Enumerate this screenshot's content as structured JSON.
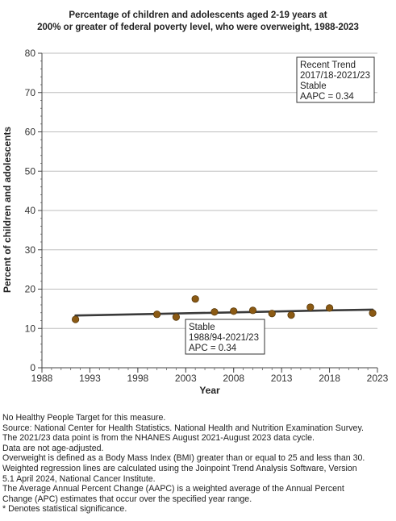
{
  "chart_data": {
    "type": "scatter",
    "title_lines": [
      "Percentage of children and adolescents aged 2-19 years at",
      "200% or greater of federal poverty level, who were overweight, 1988-2023"
    ],
    "xlabel": "Year",
    "ylabel": "Percent of children and adolescents",
    "xlim": [
      1988,
      2023
    ],
    "ylim": [
      0,
      80
    ],
    "x_ticks": [
      1988,
      1993,
      1998,
      2003,
      2008,
      2013,
      2018,
      2023
    ],
    "y_ticks": [
      0,
      10,
      20,
      30,
      40,
      50,
      60,
      70,
      80
    ],
    "grid": "horizontal",
    "series": [
      {
        "type": "scatter",
        "color": "#8b5a14",
        "points": [
          {
            "x": 1991.5,
            "y": 12.3
          },
          {
            "x": 2000,
            "y": 13.6
          },
          {
            "x": 2002,
            "y": 12.9
          },
          {
            "x": 2004,
            "y": 17.5
          },
          {
            "x": 2006,
            "y": 14.2
          },
          {
            "x": 2008,
            "y": 14.4
          },
          {
            "x": 2010,
            "y": 14.6
          },
          {
            "x": 2012,
            "y": 13.8
          },
          {
            "x": 2014,
            "y": 13.4
          },
          {
            "x": 2016,
            "y": 15.4
          },
          {
            "x": 2018,
            "y": 15.2
          },
          {
            "x": 2022.5,
            "y": 13.9
          }
        ]
      },
      {
        "type": "line",
        "color": "#3a3a3a",
        "points": [
          {
            "x": 1991.5,
            "y": 13.3
          },
          {
            "x": 2000,
            "y": 13.7
          },
          {
            "x": 2004,
            "y": 13.9
          },
          {
            "x": 2006,
            "y": 14.0
          },
          {
            "x": 2010,
            "y": 14.2
          },
          {
            "x": 2014,
            "y": 14.4
          },
          {
            "x": 2016,
            "y": 14.5
          },
          {
            "x": 2018,
            "y": 14.6
          },
          {
            "x": 2022.5,
            "y": 14.8
          }
        ]
      }
    ],
    "annotations": [
      {
        "position": "top-right",
        "lines": [
          "Recent Trend",
          "2017/18-2021/23",
          "Stable",
          "AAPC =  0.34"
        ]
      },
      {
        "position": "lower-middle",
        "lines": [
          "Stable",
          "1988/94-2021/23",
          "APC =  0.34"
        ]
      }
    ]
  },
  "notes": [
    "No Healthy People Target for this measure.",
    "Source: National Center for Health Statistics. National Health and Nutrition Examination Survey.",
    "The 2021/23 data point is from the NHANES August 2021-August 2023 data cycle.",
    "Data are not age-adjusted.",
    "Overweight is defined as a Body Mass Index (BMI) greater than or equal to 25 and less than 30.",
    "Weighted regression lines are calculated using the Joinpoint Trend Analysis Software, Version",
    "5.1 April 2024, National Cancer Institute.",
    "The Average Annual Percent Change (AAPC) is a weighted average of the Annual Percent",
    "Change (APC) estimates that occur over the specified year range.",
    "* Denotes statistical significance."
  ]
}
